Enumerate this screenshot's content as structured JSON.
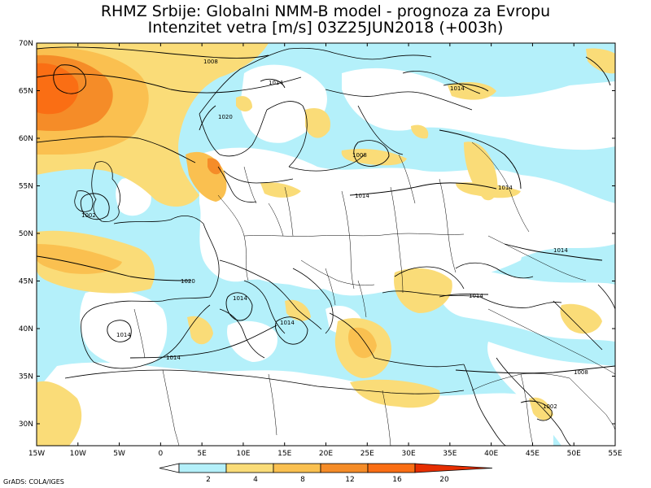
{
  "title": {
    "line1": "RHMZ Srbije: Globalni NMM-B model - prognoza za Evropu",
    "line2": "Intenzitet vetra [m/s] 03Z25JUN2018 (+003h)"
  },
  "axes": {
    "lat_labels": [
      "70N",
      "65N",
      "60N",
      "55N",
      "50N",
      "45N",
      "40N",
      "35N",
      "30N"
    ],
    "lon_labels": [
      "15W",
      "10W",
      "5W",
      "0",
      "5E",
      "10E",
      "15E",
      "20E",
      "25E",
      "30E",
      "35E",
      "40E",
      "45E",
      "50E",
      "55E"
    ]
  },
  "legend": {
    "ticks": [
      "2",
      "4",
      "8",
      "12",
      "16",
      "20"
    ],
    "colors": [
      "#ffffff",
      "#b4f0fa",
      "#fadc78",
      "#fac050",
      "#f58c28",
      "#fa6e14",
      "#e62e00"
    ]
  },
  "isobars": {
    "labels": [
      "1008",
      "1014",
      "1014",
      "1014",
      "1014",
      "1008",
      "1014",
      "1014",
      "1020",
      "1014",
      "1014",
      "1014",
      "1014",
      "1008",
      "1002",
      "1020",
      "1002"
    ]
  },
  "credit": "GrADS: COLA/IGES"
}
